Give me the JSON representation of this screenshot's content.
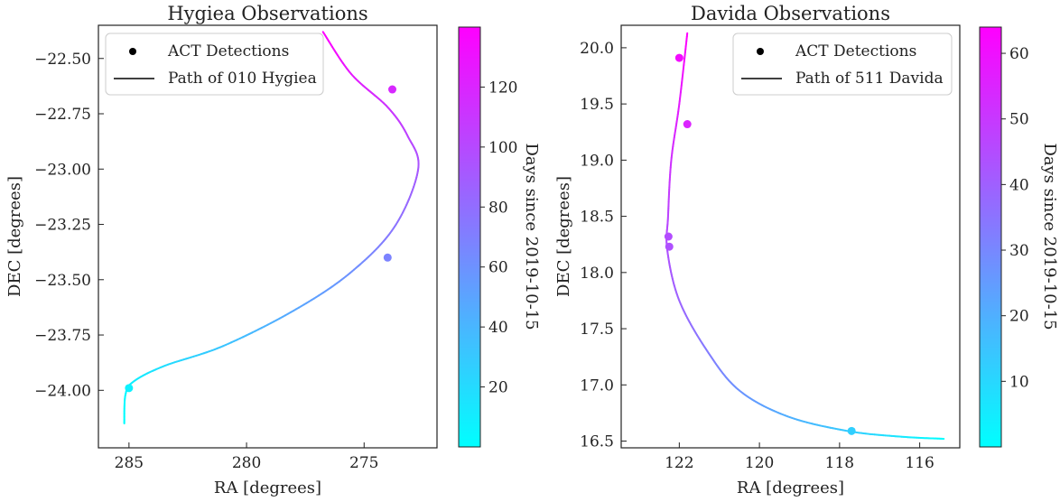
{
  "chart_data": [
    {
      "type": "scatter",
      "title": "Hygiea Observations",
      "xlabel": "RA [degrees]",
      "ylabel": "DEC [degrees]",
      "xlim": [
        286.3,
        271.9
      ],
      "ylim": [
        -24.26,
        -22.35
      ],
      "xticks": [
        285,
        280,
        275
      ],
      "yticks": [
        -22.5,
        -22.75,
        -23.0,
        -23.25,
        -23.5,
        -23.75,
        -24.0
      ],
      "xtick_labels": [
        "285",
        "280",
        "275"
      ],
      "ytick_labels": [
        "−22.50",
        "−22.75",
        "−23.00",
        "−23.25",
        "−23.50",
        "−23.75",
        "−24.00"
      ],
      "legend": {
        "position": "upper-left",
        "items": [
          "ACT Detections",
          "Path of 010 Hygiea"
        ]
      },
      "colorbar": {
        "label": "Days since 2019-10-15",
        "range": [
          0,
          140
        ],
        "ticks": [
          20,
          40,
          60,
          80,
          100,
          120
        ],
        "tick_labels": [
          "20",
          "40",
          "60",
          "80",
          "100",
          "120"
        ],
        "colors": [
          "#00ffff",
          "#ff00ff"
        ]
      },
      "path": [
        {
          "ra": 285.2,
          "dec": -24.15,
          "t": 0
        },
        {
          "ra": 285.15,
          "dec": -24.02,
          "t": 4
        },
        {
          "ra": 284.8,
          "dec": -23.96,
          "t": 9
        },
        {
          "ra": 283.5,
          "dec": -23.89,
          "t": 18
        },
        {
          "ra": 281.0,
          "dec": -23.8,
          "t": 32
        },
        {
          "ra": 278.0,
          "dec": -23.64,
          "t": 48
        },
        {
          "ra": 275.6,
          "dec": -23.47,
          "t": 60
        },
        {
          "ra": 273.7,
          "dec": -23.26,
          "t": 76
        },
        {
          "ra": 272.7,
          "dec": -23.0,
          "t": 92
        },
        {
          "ra": 273.15,
          "dec": -22.85,
          "t": 103
        },
        {
          "ra": 274.0,
          "dec": -22.72,
          "t": 112
        },
        {
          "ra": 275.55,
          "dec": -22.57,
          "t": 126
        },
        {
          "ra": 276.75,
          "dec": -22.38,
          "t": 140
        }
      ],
      "detections": [
        {
          "ra": 285.0,
          "dec": -23.99,
          "t": 7
        },
        {
          "ra": 274.0,
          "dec": -23.4,
          "t": 68
        },
        {
          "ra": 273.8,
          "dec": -22.64,
          "t": 118
        }
      ]
    },
    {
      "type": "scatter",
      "title": "Davida Observations",
      "xlabel": "RA [degrees]",
      "ylabel": "DEC [degrees]",
      "xlim": [
        123.45,
        115.0
      ],
      "ylim": [
        16.44,
        20.2
      ],
      "xticks": [
        122,
        120,
        118,
        116
      ],
      "yticks": [
        16.5,
        17.0,
        17.5,
        18.0,
        18.5,
        19.0,
        19.5,
        20.0
      ],
      "xtick_labels": [
        "122",
        "120",
        "118",
        "116"
      ],
      "ytick_labels": [
        "16.5",
        "17.0",
        "17.5",
        "18.0",
        "18.5",
        "19.0",
        "19.5",
        "20.0"
      ],
      "legend": {
        "position": "upper-right",
        "items": [
          "ACT Detections",
          "Path of 511 Davida"
        ]
      },
      "colorbar": {
        "label": "Days since 2019-10-15",
        "range": [
          0,
          64
        ],
        "ticks": [
          10,
          20,
          30,
          40,
          50,
          60
        ],
        "tick_labels": [
          "10",
          "20",
          "30",
          "40",
          "50",
          "60"
        ],
        "colors": [
          "#00ffff",
          "#ff00ff"
        ]
      },
      "path": [
        {
          "ra": 115.4,
          "dec": 16.52,
          "t": 0
        },
        {
          "ra": 116.5,
          "dec": 16.54,
          "t": 6
        },
        {
          "ra": 117.8,
          "dec": 16.59,
          "t": 13
        },
        {
          "ra": 119.3,
          "dec": 16.72,
          "t": 20
        },
        {
          "ra": 120.5,
          "dec": 16.95,
          "t": 27
        },
        {
          "ra": 121.3,
          "dec": 17.3,
          "t": 33
        },
        {
          "ra": 122.0,
          "dec": 17.75,
          "t": 39
        },
        {
          "ra": 122.3,
          "dec": 18.2,
          "t": 44
        },
        {
          "ra": 122.28,
          "dec": 18.5,
          "t": 47
        },
        {
          "ra": 122.2,
          "dec": 19.0,
          "t": 52
        },
        {
          "ra": 122.0,
          "dec": 19.5,
          "t": 57
        },
        {
          "ra": 121.8,
          "dec": 20.13,
          "t": 64
        }
      ],
      "detections": [
        {
          "ra": 117.7,
          "dec": 16.59,
          "t": 12
        },
        {
          "ra": 122.25,
          "dec": 18.23,
          "t": 44
        },
        {
          "ra": 122.27,
          "dec": 18.32,
          "t": 45
        },
        {
          "ra": 121.8,
          "dec": 19.32,
          "t": 55
        },
        {
          "ra": 122.0,
          "dec": 19.91,
          "t": 61
        }
      ]
    }
  ]
}
